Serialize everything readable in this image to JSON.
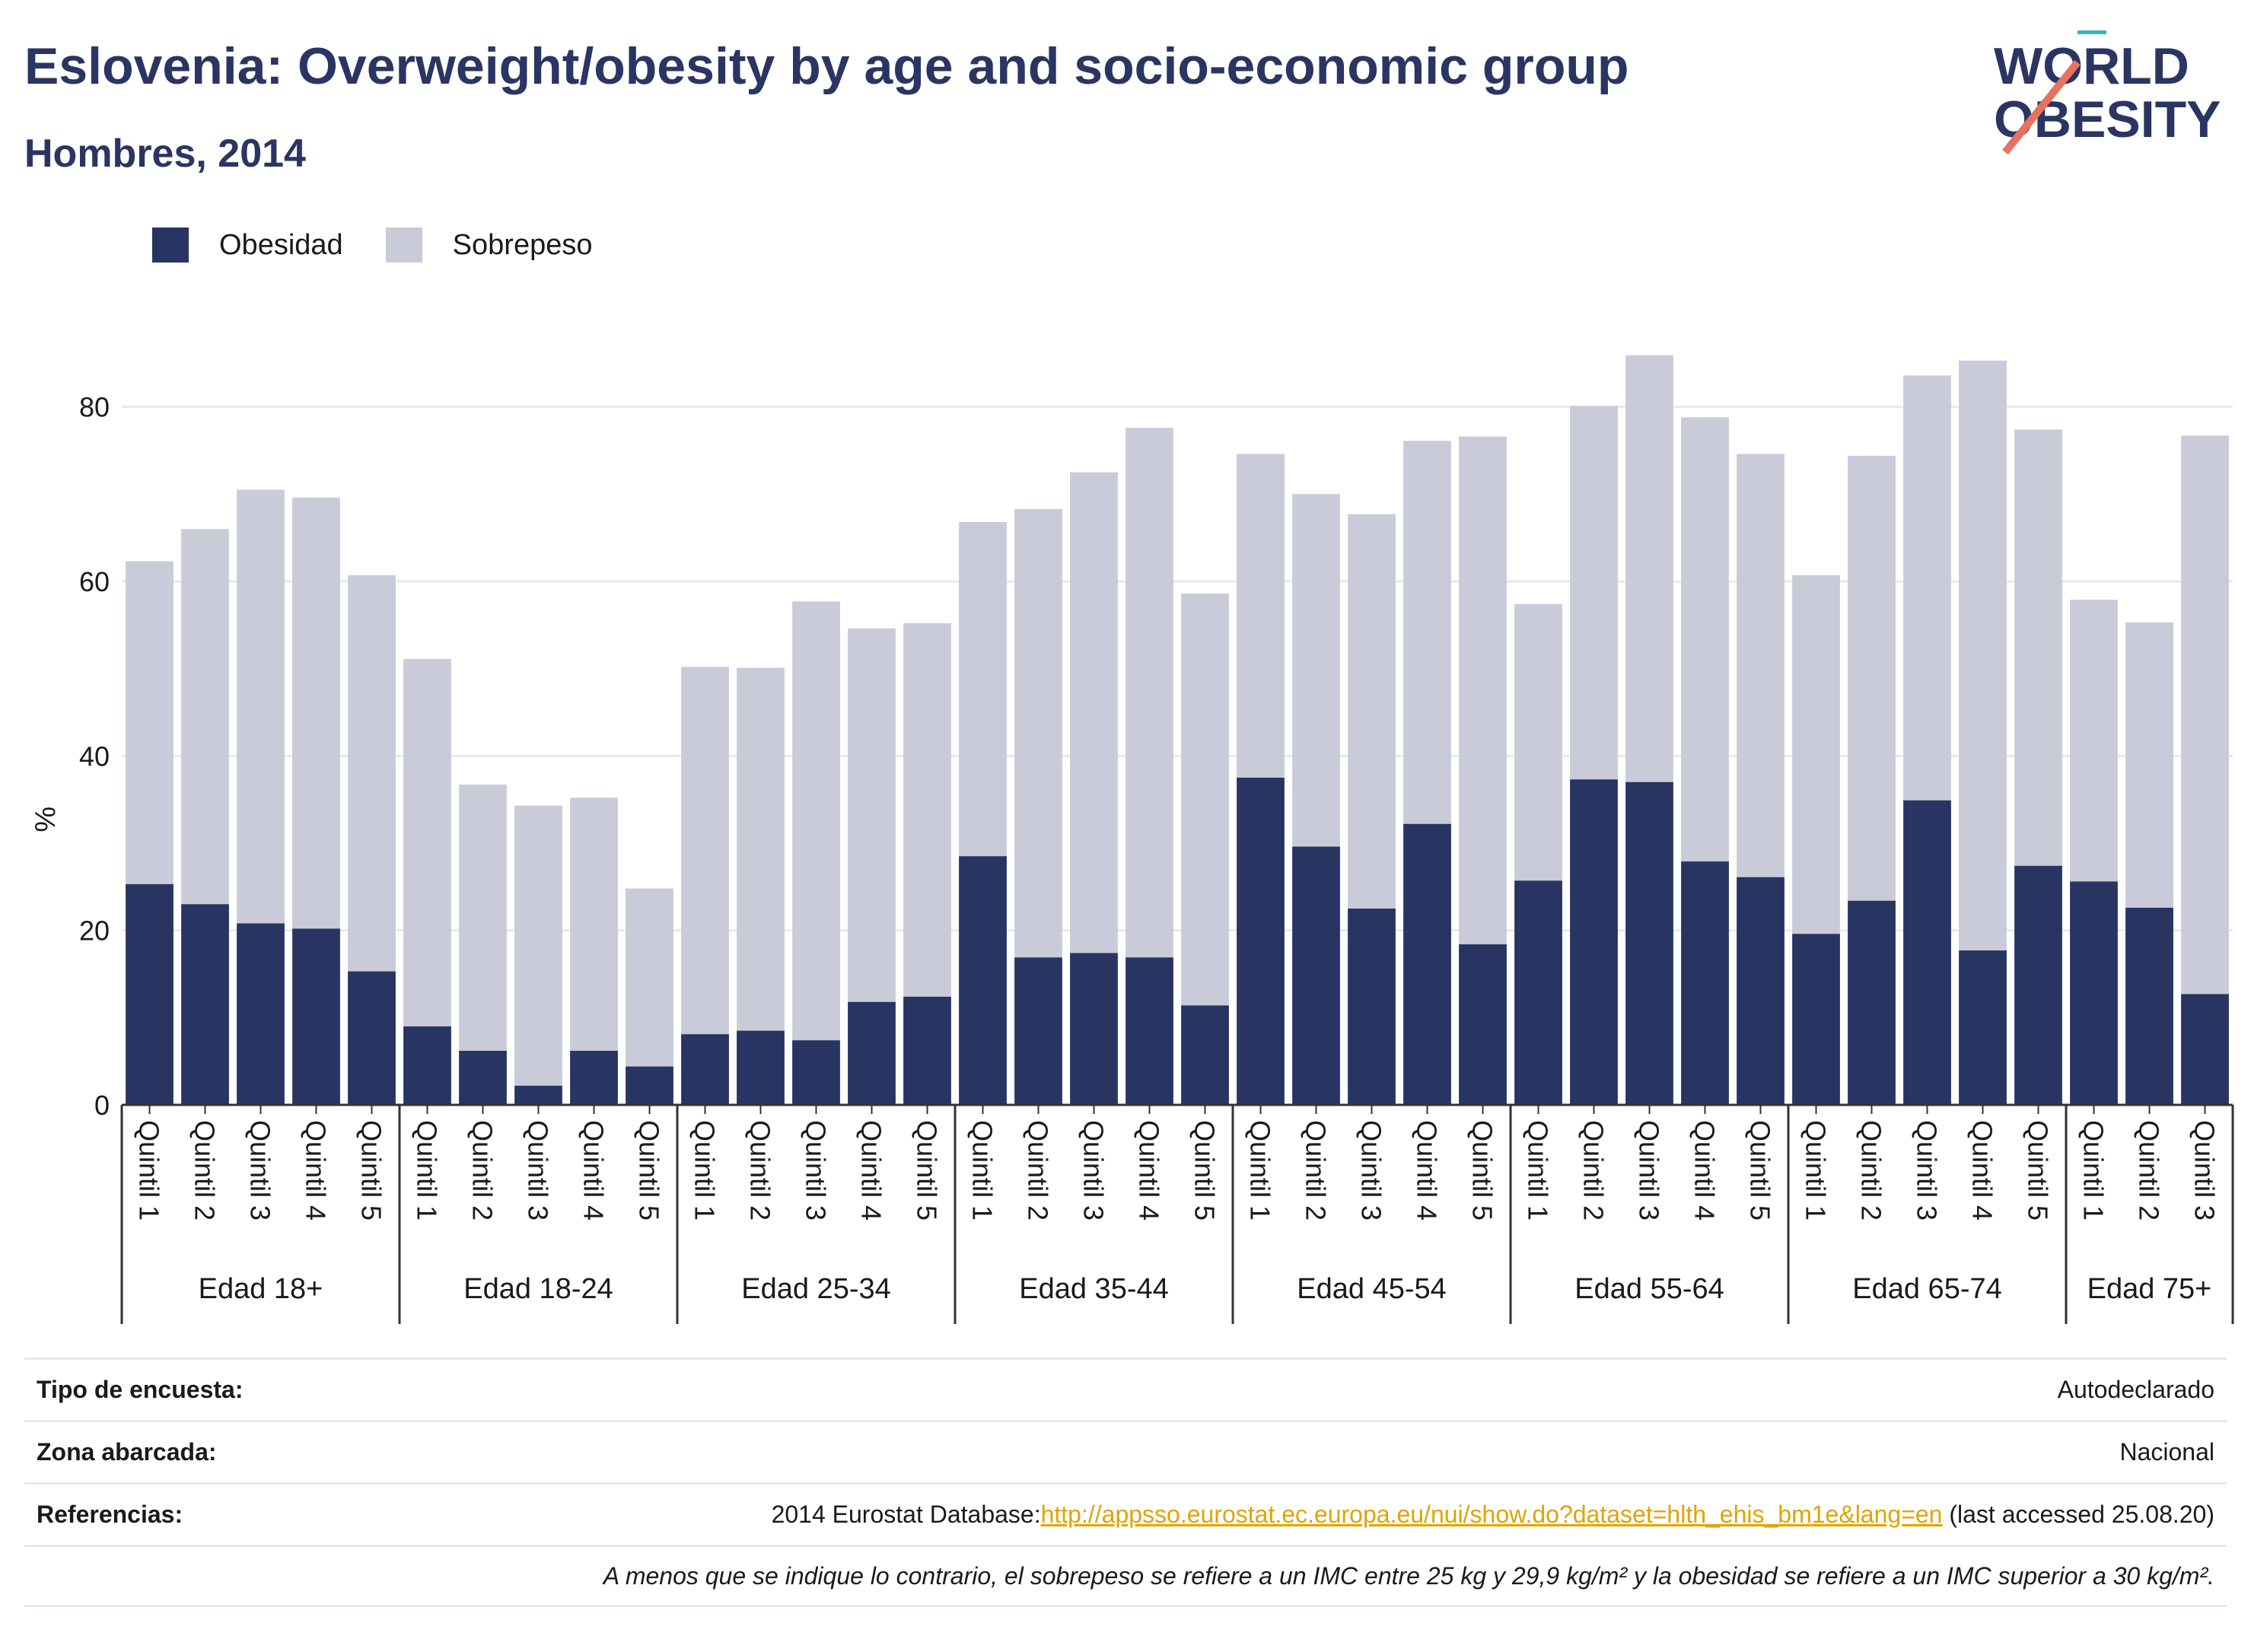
{
  "title": "Eslovenia: Overweight/obesity by age and socio-economic group",
  "subtitle": "Hombres, 2014",
  "logo": {
    "line1": "WORLD",
    "line2": "OBESITY"
  },
  "colors": {
    "obesity": "#283462",
    "overweight": "#c9cbd8",
    "grid": "#e8e9ee",
    "axis": "#333333",
    "link": "#e0a400"
  },
  "chart_data": {
    "type": "bar",
    "stacked": true,
    "ylabel": "%",
    "ylim": [
      0,
      90
    ],
    "yticks": [
      0,
      20,
      40,
      60,
      80
    ],
    "grid": true,
    "legend_position": "top-left",
    "groups": [
      {
        "label": "Edad 18+",
        "categories": [
          "Quintil 1",
          "Quintil 2",
          "Quintil 3",
          "Quintil 4",
          "Quintil 5"
        ]
      },
      {
        "label": "Edad 18-24",
        "categories": [
          "Quintil 1",
          "Quintil 2",
          "Quintil 3",
          "Quintil 4",
          "Quintil 5"
        ]
      },
      {
        "label": "Edad 25-34",
        "categories": [
          "Quintil 1",
          "Quintil 2",
          "Quintil 3",
          "Quintil 4",
          "Quintil 5"
        ]
      },
      {
        "label": "Edad 35-44",
        "categories": [
          "Quintil 1",
          "Quintil 2",
          "Quintil 3",
          "Quintil 4",
          "Quintil 5"
        ]
      },
      {
        "label": "Edad 45-54",
        "categories": [
          "Quintil 1",
          "Quintil 2",
          "Quintil 3",
          "Quintil 4",
          "Quintil 5"
        ]
      },
      {
        "label": "Edad 55-64",
        "categories": [
          "Quintil 1",
          "Quintil 2",
          "Quintil 3",
          "Quintil 4",
          "Quintil 5"
        ]
      },
      {
        "label": "Edad 65-74",
        "categories": [
          "Quintil 1",
          "Quintil 2",
          "Quintil 3",
          "Quintil 4",
          "Quintil 5"
        ]
      },
      {
        "label": "Edad 75+",
        "categories": [
          "Quintil 1",
          "Quintil 2",
          "Quintil 3"
        ]
      }
    ],
    "series": [
      {
        "name": "Obesidad",
        "values": [
          25.3,
          23.0,
          20.8,
          20.2,
          15.3,
          9.0,
          6.2,
          2.2,
          6.2,
          4.4,
          8.1,
          8.5,
          7.4,
          11.8,
          12.4,
          28.5,
          16.9,
          17.4,
          16.9,
          11.4,
          37.5,
          29.6,
          22.5,
          32.2,
          18.4,
          25.7,
          37.3,
          37.0,
          27.9,
          26.1,
          19.6,
          23.4,
          34.9,
          17.7,
          27.4,
          25.6,
          22.6,
          12.7
        ]
      },
      {
        "name": "Sobrepeso",
        "values": [
          37.0,
          43.0,
          49.7,
          49.4,
          45.4,
          42.1,
          30.5,
          32.1,
          29.0,
          20.4,
          42.1,
          41.6,
          50.3,
          42.8,
          42.8,
          38.3,
          51.4,
          55.1,
          60.7,
          47.2,
          37.1,
          40.4,
          45.2,
          43.9,
          58.2,
          31.7,
          42.8,
          48.9,
          50.9,
          48.5,
          41.1,
          51.0,
          48.7,
          67.6,
          50.0,
          32.3,
          32.7,
          64.0
        ]
      }
    ]
  },
  "info": {
    "survey_type_label": "Tipo de encuesta:",
    "survey_type_value": "Autodeclarado",
    "area_label": "Zona abarcada:",
    "area_value": "Nacional",
    "references_label": "Referencias:",
    "references_prefix": "2014 Eurostat Database:",
    "references_link": "http://appsso.eurostat.ec.europa.eu/nui/show.do?dataset=hlth_ehis_bm1e&lang=en",
    "references_suffix": " (last accessed 25.08.20)",
    "note": "A menos que se indique lo contrario, el sobrepeso se refiere a un IMC entre 25 kg y 29,9 kg/m² y la obesidad se refiere a un IMC superior a 30 kg/m²."
  }
}
